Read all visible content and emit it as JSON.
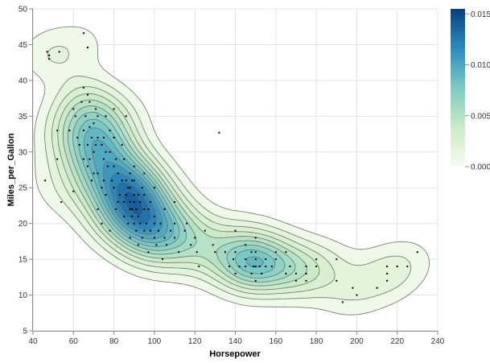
{
  "chart_data": {
    "type": "contour",
    "xlabel": "Horsepower",
    "ylabel": "Miles_per_Gallon",
    "xlim": [
      40,
      240
    ],
    "ylim": [
      5,
      50
    ],
    "x_ticks": [
      40,
      60,
      80,
      100,
      120,
      140,
      160,
      180,
      200,
      220,
      240
    ],
    "y_ticks": [
      5,
      10,
      15,
      20,
      25,
      30,
      35,
      40,
      45,
      50
    ],
    "grid": true,
    "colorbar": {
      "range": [
        0,
        0.0155
      ],
      "ticks": [
        "0.000",
        "0.005",
        "0.010",
        "0.015"
      ],
      "tick_values": [
        0,
        0.005,
        0.01,
        0.015
      ],
      "colors": [
        "#f7fcf0",
        "#ccebc5",
        "#7bccc4",
        "#2b8cbe",
        "#084081"
      ]
    },
    "density_clusters": [
      {
        "center": [
          92,
          22.5
        ],
        "peak": 0.0145
      },
      {
        "center": [
          72,
          31
        ],
        "peak": 0.0115
      },
      {
        "center": [
          147,
          15.2
        ],
        "peak": 0.0082
      },
      {
        "center": [
          210,
          13
        ],
        "peak": 0.0008
      }
    ],
    "points": [
      [
        46,
        26
      ],
      [
        47,
        44
      ],
      [
        48,
        43.5
      ],
      [
        48,
        43
      ],
      [
        52,
        33
      ],
      [
        52,
        29
      ],
      [
        53,
        44
      ],
      [
        54,
        23
      ],
      [
        58,
        33
      ],
      [
        60,
        24.5
      ],
      [
        60,
        36
      ],
      [
        61,
        35
      ],
      [
        62,
        32
      ],
      [
        63,
        31
      ],
      [
        64,
        37
      ],
      [
        65,
        29
      ],
      [
        65,
        46.6
      ],
      [
        65,
        39
      ],
      [
        65,
        33
      ],
      [
        66,
        35
      ],
      [
        67,
        38
      ],
      [
        67,
        31
      ],
      [
        67,
        28
      ],
      [
        67,
        44.6
      ],
      [
        68,
        29
      ],
      [
        68,
        37
      ],
      [
        68,
        33.5
      ],
      [
        69,
        32
      ],
      [
        69,
        26
      ],
      [
        70,
        27
      ],
      [
        70,
        30
      ],
      [
        70,
        34
      ],
      [
        71,
        31
      ],
      [
        71,
        36
      ],
      [
        72,
        27
      ],
      [
        72,
        32
      ],
      [
        72,
        35
      ],
      [
        72,
        22
      ],
      [
        74,
        25
      ],
      [
        74,
        31
      ],
      [
        74,
        20
      ],
      [
        75,
        26
      ],
      [
        75,
        32
      ],
      [
        75,
        29
      ],
      [
        76,
        30
      ],
      [
        76,
        35
      ],
      [
        76,
        24
      ],
      [
        77,
        28
      ],
      [
        78,
        30
      ],
      [
        78,
        33
      ],
      [
        78,
        19
      ],
      [
        79,
        26
      ],
      [
        80,
        25
      ],
      [
        80,
        32
      ],
      [
        80,
        28
      ],
      [
        80,
        36
      ],
      [
        81,
        29
      ],
      [
        81,
        22
      ],
      [
        82,
        23
      ],
      [
        82,
        27
      ],
      [
        83,
        24
      ],
      [
        84,
        26
      ],
      [
        84,
        31
      ],
      [
        85,
        29
      ],
      [
        85,
        21
      ],
      [
        85,
        23
      ],
      [
        86,
        24
      ],
      [
        86,
        26
      ],
      [
        86,
        35
      ],
      [
        87,
        25
      ],
      [
        87,
        20
      ],
      [
        88,
        22
      ],
      [
        88,
        23
      ],
      [
        88,
        27
      ],
      [
        88,
        18
      ],
      [
        88,
        25
      ],
      [
        89,
        22
      ],
      [
        89,
        26
      ],
      [
        89,
        21
      ],
      [
        90,
        24
      ],
      [
        90,
        20
      ],
      [
        90,
        28
      ],
      [
        90,
        23
      ],
      [
        90,
        26
      ],
      [
        91,
        19
      ],
      [
        91,
        22
      ],
      [
        92,
        21
      ],
      [
        92,
        24
      ],
      [
        92,
        17
      ],
      [
        93,
        20
      ],
      [
        93,
        23
      ],
      [
        94,
        25
      ],
      [
        94,
        18
      ],
      [
        95,
        22
      ],
      [
        95,
        19
      ],
      [
        95,
        24
      ],
      [
        95,
        27
      ],
      [
        96,
        20
      ],
      [
        97,
        22
      ],
      [
        97,
        16
      ],
      [
        98,
        19
      ],
      [
        98,
        23
      ],
      [
        100,
        18
      ],
      [
        100,
        20
      ],
      [
        100,
        21
      ],
      [
        100,
        25
      ],
      [
        101,
        17
      ],
      [
        102,
        19
      ],
      [
        103,
        20
      ],
      [
        104,
        15
      ],
      [
        105,
        18
      ],
      [
        105,
        22
      ],
      [
        106,
        17
      ],
      [
        108,
        19
      ],
      [
        110,
        18
      ],
      [
        110,
        20
      ],
      [
        110,
        23
      ],
      [
        112,
        16
      ],
      [
        115,
        19
      ],
      [
        116,
        20
      ],
      [
        118,
        17
      ],
      [
        120,
        18
      ],
      [
        121,
        16
      ],
      [
        122,
        14
      ],
      [
        125,
        19
      ],
      [
        129,
        17
      ],
      [
        130,
        16
      ],
      [
        132,
        32.7
      ],
      [
        135,
        16
      ],
      [
        137,
        14
      ],
      [
        139,
        15
      ],
      [
        140,
        13
      ],
      [
        140,
        16
      ],
      [
        140,
        19
      ],
      [
        142,
        14
      ],
      [
        145,
        17
      ],
      [
        145,
        14
      ],
      [
        145,
        15
      ],
      [
        148,
        16
      ],
      [
        148,
        13
      ],
      [
        149,
        14
      ],
      [
        150,
        15
      ],
      [
        150,
        12
      ],
      [
        150,
        16
      ],
      [
        150,
        18
      ],
      [
        150,
        14
      ],
      [
        152,
        14
      ],
      [
        153,
        13
      ],
      [
        155,
        15
      ],
      [
        155,
        14
      ],
      [
        158,
        14
      ],
      [
        160,
        16
      ],
      [
        160,
        15
      ],
      [
        165,
        13
      ],
      [
        165,
        16
      ],
      [
        167,
        14
      ],
      [
        170,
        13
      ],
      [
        170,
        12
      ],
      [
        175,
        14
      ],
      [
        175,
        13
      ],
      [
        175,
        12
      ],
      [
        180,
        15
      ],
      [
        180,
        14
      ],
      [
        190,
        12
      ],
      [
        190,
        15
      ],
      [
        193,
        9
      ],
      [
        198,
        11
      ],
      [
        200,
        10
      ],
      [
        210,
        11
      ],
      [
        215,
        13
      ],
      [
        215,
        12
      ],
      [
        215,
        14
      ],
      [
        220,
        14
      ],
      [
        225,
        14
      ],
      [
        230,
        16
      ]
    ]
  }
}
